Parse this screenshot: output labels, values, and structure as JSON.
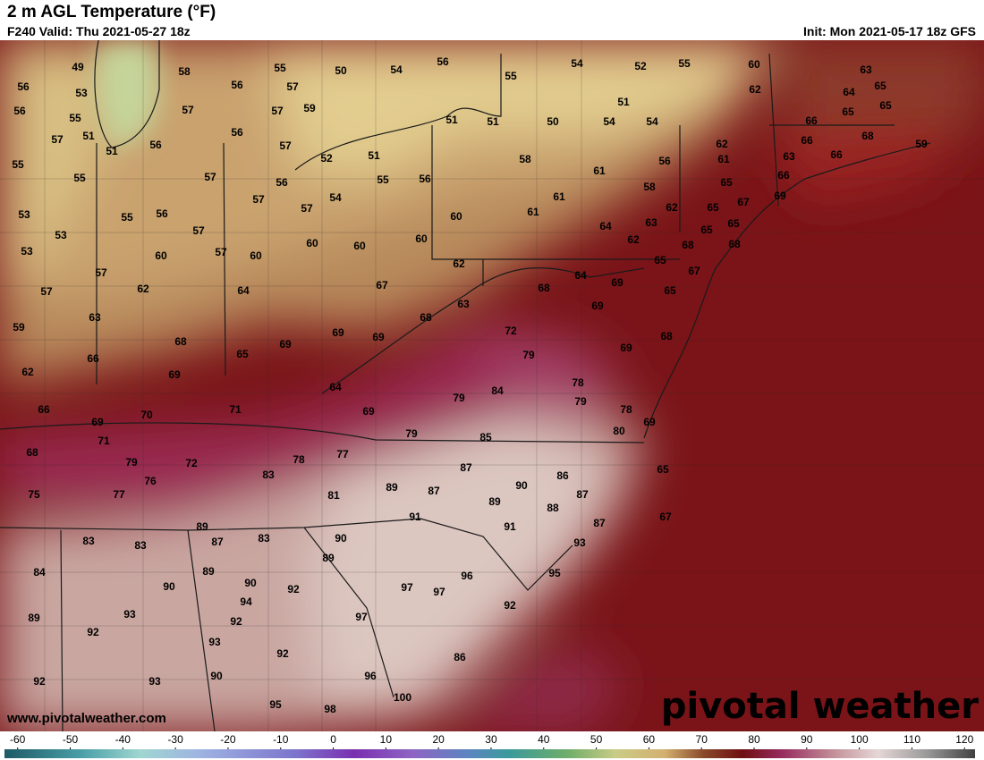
{
  "header": {
    "title": "2 m AGL Temperature (°F)",
    "valid": "F240 Valid: Thu 2021-05-27 18z",
    "init": "Init: Mon 2021-05-17 18z GFS"
  },
  "map": {
    "labels": [
      49,
      58,
      55,
      50,
      54,
      56,
      54,
      52,
      55,
      60,
      63,
      56,
      53,
      56,
      57,
      55,
      62,
      64,
      65,
      56,
      55,
      57,
      57,
      59,
      51,
      65,
      65,
      51,
      51,
      51,
      50,
      54,
      54,
      66,
      57,
      56,
      56,
      57,
      62,
      66,
      68,
      59,
      51,
      52,
      51,
      58,
      56,
      61,
      63,
      66,
      55,
      55,
      57,
      56,
      55,
      56,
      61,
      58,
      65,
      66,
      57,
      54,
      61,
      67,
      69,
      53,
      55,
      56,
      57,
      60,
      61,
      62,
      65,
      63,
      64,
      65,
      65,
      53,
      57,
      60,
      60,
      60,
      62,
      53,
      60,
      57,
      60,
      68,
      68,
      57,
      62,
      65,
      64,
      69,
      67,
      57,
      62,
      64,
      67,
      68,
      65,
      63,
      63,
      69,
      68,
      59,
      69,
      69,
      72,
      68,
      68,
      69,
      65,
      66,
      69,
      79,
      62,
      69,
      78,
      64,
      84,
      79,
      79,
      66,
      70,
      71,
      69,
      78,
      69,
      69,
      79,
      85,
      80,
      71,
      68,
      79,
      72,
      78,
      77,
      76,
      83,
      87,
      86,
      65,
      75,
      77,
      81,
      89,
      87,
      90,
      87,
      89,
      88,
      91,
      67,
      87,
      89,
      91,
      83,
      83,
      87,
      83,
      90,
      93,
      84,
      89,
      89,
      96,
      95,
      90,
      90,
      92,
      97,
      97,
      94,
      93,
      92,
      89,
      92,
      97,
      92,
      93,
      92,
      86,
      92,
      93,
      90,
      96,
      100,
      95,
      98
    ]
  },
  "footer": {
    "website": "www.pivotalweather.com",
    "logo": "pivotal weather"
  },
  "colorbar": {
    "ticks": [
      -60,
      -50,
      -40,
      -30,
      -20,
      -10,
      0,
      10,
      20,
      30,
      40,
      50,
      60,
      70,
      80,
      90,
      100,
      110,
      120
    ],
    "range": [
      -62.5,
      122
    ]
  }
}
